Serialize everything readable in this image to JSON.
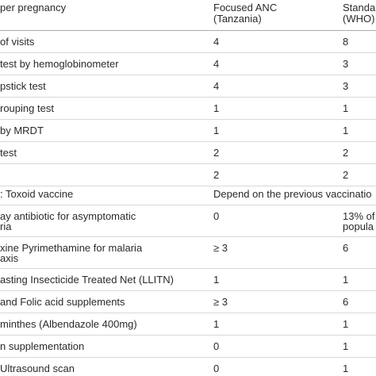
{
  "columns": {
    "item": "per pregnancy",
    "focused": [
      "Focused ANC",
      "(Tanzania)"
    ],
    "standard": [
      "Standa",
      "(WHO)"
    ]
  },
  "rows": [
    {
      "item": [
        "of visits"
      ],
      "focused": [
        "4"
      ],
      "standard": [
        "8"
      ]
    },
    {
      "item": [
        "test by hemoglobinometer"
      ],
      "focused": [
        "4"
      ],
      "standard": [
        "3"
      ]
    },
    {
      "item": [
        "pstick test"
      ],
      "focused": [
        "4"
      ],
      "standard": [
        "3"
      ]
    },
    {
      "item": [
        "rouping test"
      ],
      "focused": [
        "1"
      ],
      "standard": [
        "1"
      ]
    },
    {
      "item": [
        "by MRDT"
      ],
      "focused": [
        "1"
      ],
      "standard": [
        "1"
      ]
    },
    {
      "item": [
        "test"
      ],
      "focused": [
        "2"
      ],
      "standard": [
        "2"
      ]
    },
    {
      "item": [
        ""
      ],
      "focused": [
        "2"
      ],
      "standard": [
        "2"
      ]
    },
    {
      "item": [
        ": Toxoid vaccine"
      ],
      "focused": [
        "Depend on the previous vaccinatio"
      ],
      "standard": [
        ""
      ]
    },
    {
      "item": [
        "ay antibiotic for asymptomatic",
        "ria"
      ],
      "focused": [
        "0"
      ],
      "standard": [
        "13% of",
        "popula"
      ]
    },
    {
      "item": [
        "xine Pyrimethamine for malaria",
        "axis"
      ],
      "focused": [
        "≥ 3"
      ],
      "standard": [
        "6"
      ]
    },
    {
      "item": [
        "asting Insecticide Treated Net (LLITN)"
      ],
      "focused": [
        "1"
      ],
      "standard": [
        "1"
      ]
    },
    {
      "item": [
        "and Folic acid supplements"
      ],
      "focused": [
        "≥ 3"
      ],
      "standard": [
        "6"
      ]
    },
    {
      "item": [
        "minthes (Albendazole 400mg)"
      ],
      "focused": [
        "1"
      ],
      "standard": [
        "1"
      ]
    },
    {
      "item": [
        "n supplementation"
      ],
      "focused": [
        "0"
      ],
      "standard": [
        "1"
      ]
    },
    {
      "item": [
        "Ultrasound scan"
      ],
      "focused": [
        "0"
      ],
      "standard": [
        "1"
      ]
    }
  ]
}
